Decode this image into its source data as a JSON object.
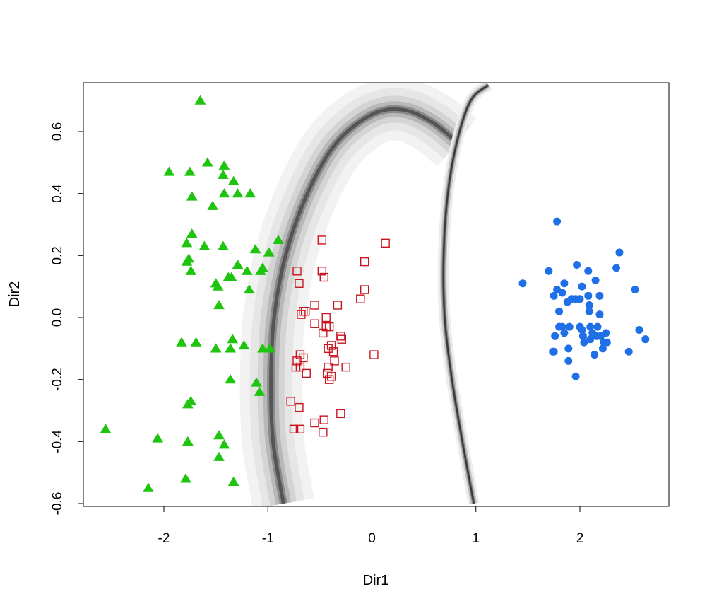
{
  "chart_data": {
    "type": "scatter",
    "xlabel": "Dir1",
    "ylabel": "Dir2",
    "xlim": [
      -2.72,
      2.92
    ],
    "ylim": [
      -0.607,
      0.75
    ],
    "x_ticks": [
      -2,
      -1,
      0,
      1,
      2
    ],
    "x_tick_labels": [
      "-2",
      "-1",
      "0",
      "1",
      "2"
    ],
    "y_ticks": [
      -0.6,
      -0.4,
      -0.2,
      0.0,
      0.2,
      0.4,
      0.6
    ],
    "y_tick_labels": [
      "-0.6",
      "-0.4",
      "-0.2",
      "0.0",
      "0.2",
      "0.4",
      "0.6"
    ],
    "grid": false,
    "legend": "none",
    "background": "grayscale density bands marking two decision boundaries",
    "boundaries": [
      {
        "points": [
          [
            -0.85,
            -0.6
          ],
          [
            -0.95,
            -0.4
          ],
          [
            -0.97,
            -0.2
          ],
          [
            -0.94,
            0.0
          ],
          [
            -0.83,
            0.2
          ],
          [
            -0.62,
            0.4
          ],
          [
            -0.35,
            0.56
          ],
          [
            0.0,
            0.655
          ],
          [
            0.3,
            0.67
          ],
          [
            0.58,
            0.63
          ],
          [
            0.82,
            0.565
          ]
        ]
      },
      {
        "points": [
          [
            0.98,
            -0.6
          ],
          [
            0.87,
            -0.4
          ],
          [
            0.77,
            -0.2
          ],
          [
            0.7,
            0.0
          ],
          [
            0.69,
            0.2
          ],
          [
            0.73,
            0.4
          ],
          [
            0.82,
            0.57
          ],
          [
            0.95,
            0.7
          ],
          [
            1.12,
            0.75
          ]
        ]
      }
    ],
    "series": [
      {
        "marker": "triangle",
        "color": "#1ec40d",
        "points": [
          [
            -1.65,
            0.7
          ],
          [
            -1.95,
            0.47
          ],
          [
            -1.75,
            0.47
          ],
          [
            -1.58,
            0.5
          ],
          [
            -1.42,
            0.49
          ],
          [
            -1.43,
            0.46
          ],
          [
            -1.33,
            0.44
          ],
          [
            -1.73,
            0.39
          ],
          [
            -1.42,
            0.4
          ],
          [
            -1.29,
            0.4
          ],
          [
            -1.17,
            0.4
          ],
          [
            -1.53,
            0.36
          ],
          [
            -1.73,
            0.27
          ],
          [
            -0.9,
            0.25
          ],
          [
            -1.78,
            0.24
          ],
          [
            -1.61,
            0.23
          ],
          [
            -1.43,
            0.23
          ],
          [
            -1.12,
            0.22
          ],
          [
            -0.99,
            0.21
          ],
          [
            -1.76,
            0.19
          ],
          [
            -1.78,
            0.18
          ],
          [
            -1.29,
            0.17
          ],
          [
            -1.05,
            0.16
          ],
          [
            -1.74,
            0.15
          ],
          [
            -1.2,
            0.15
          ],
          [
            -1.07,
            0.15
          ],
          [
            -1.38,
            0.13
          ],
          [
            -1.35,
            0.13
          ],
          [
            -1.5,
            0.11
          ],
          [
            -1.48,
            0.1
          ],
          [
            -1.18,
            0.09
          ],
          [
            -1.47,
            0.04
          ],
          [
            -1.34,
            -0.07
          ],
          [
            -1.83,
            -0.08
          ],
          [
            -1.69,
            -0.08
          ],
          [
            -1.23,
            -0.09
          ],
          [
            -1.5,
            -0.1
          ],
          [
            -1.36,
            -0.1
          ],
          [
            -1.05,
            -0.1
          ],
          [
            -0.98,
            -0.1
          ],
          [
            -1.36,
            -0.2
          ],
          [
            -1.11,
            -0.21
          ],
          [
            -1.08,
            -0.24
          ],
          [
            -1.74,
            -0.27
          ],
          [
            -1.77,
            -0.28
          ],
          [
            -2.56,
            -0.36
          ],
          [
            -1.47,
            -0.38
          ],
          [
            -2.06,
            -0.39
          ],
          [
            -1.77,
            -0.4
          ],
          [
            -1.42,
            -0.41
          ],
          [
            -1.47,
            -0.45
          ],
          [
            -1.79,
            -0.52
          ],
          [
            -1.33,
            -0.53
          ],
          [
            -2.15,
            -0.55
          ]
        ]
      },
      {
        "marker": "open-square",
        "color": "#c8141e",
        "points": [
          [
            0.13,
            0.24
          ],
          [
            -0.48,
            0.25
          ],
          [
            -0.07,
            0.18
          ],
          [
            -0.72,
            0.15
          ],
          [
            -0.48,
            0.15
          ],
          [
            -0.46,
            0.13
          ],
          [
            -0.7,
            0.11
          ],
          [
            -0.07,
            0.09
          ],
          [
            -0.11,
            0.06
          ],
          [
            -0.55,
            0.04
          ],
          [
            -0.33,
            0.04
          ],
          [
            -0.64,
            0.02
          ],
          [
            -0.66,
            0.02
          ],
          [
            -0.68,
            0.01
          ],
          [
            -0.44,
            0.0
          ],
          [
            -0.55,
            -0.02
          ],
          [
            -0.41,
            -0.03
          ],
          [
            -0.44,
            -0.03
          ],
          [
            -0.47,
            -0.05
          ],
          [
            -0.3,
            -0.06
          ],
          [
            -0.29,
            -0.07
          ],
          [
            -0.39,
            -0.09
          ],
          [
            -0.42,
            -0.1
          ],
          [
            -0.37,
            -0.11
          ],
          [
            0.02,
            -0.12
          ],
          [
            -0.69,
            -0.12
          ],
          [
            -0.66,
            -0.13
          ],
          [
            -0.36,
            -0.14
          ],
          [
            -0.72,
            -0.14
          ],
          [
            -0.73,
            -0.16
          ],
          [
            -0.69,
            -0.16
          ],
          [
            -0.42,
            -0.16
          ],
          [
            -0.25,
            -0.16
          ],
          [
            -0.43,
            -0.18
          ],
          [
            -0.63,
            -0.18
          ],
          [
            -0.39,
            -0.19
          ],
          [
            -0.41,
            -0.2
          ],
          [
            -0.78,
            -0.27
          ],
          [
            -0.7,
            -0.29
          ],
          [
            -0.3,
            -0.31
          ],
          [
            -0.46,
            -0.33
          ],
          [
            -0.55,
            -0.34
          ],
          [
            -0.75,
            -0.36
          ],
          [
            -0.69,
            -0.36
          ],
          [
            -0.47,
            -0.37
          ]
        ]
      },
      {
        "marker": "filled-circle",
        "color": "#1f6fe6",
        "points": [
          [
            1.78,
            0.31
          ],
          [
            2.38,
            0.21
          ],
          [
            1.97,
            0.17
          ],
          [
            2.35,
            0.16
          ],
          [
            1.7,
            0.15
          ],
          [
            2.08,
            0.15
          ],
          [
            2.15,
            0.12
          ],
          [
            1.45,
            0.11
          ],
          [
            1.85,
            0.11
          ],
          [
            2.02,
            0.1
          ],
          [
            1.78,
            0.09
          ],
          [
            1.83,
            0.08
          ],
          [
            2.53,
            0.09
          ],
          [
            1.75,
            0.07
          ],
          [
            1.96,
            0.06
          ],
          [
            2.0,
            0.06
          ],
          [
            2.08,
            0.07
          ],
          [
            2.19,
            0.07
          ],
          [
            1.92,
            0.06
          ],
          [
            1.88,
            0.05
          ],
          [
            2.09,
            0.04
          ],
          [
            1.8,
            0.02
          ],
          [
            2.09,
            0.02
          ],
          [
            2.19,
            0.01
          ],
          [
            1.8,
            -0.03
          ],
          [
            2.0,
            -0.03
          ],
          [
            1.9,
            -0.03
          ],
          [
            1.83,
            -0.03
          ],
          [
            2.1,
            -0.03
          ],
          [
            2.17,
            -0.03
          ],
          [
            2.02,
            -0.04
          ],
          [
            2.57,
            -0.04
          ],
          [
            1.85,
            -0.05
          ],
          [
            2.12,
            -0.05
          ],
          [
            2.16,
            -0.06
          ],
          [
            2.25,
            -0.05
          ],
          [
            1.76,
            -0.06
          ],
          [
            2.03,
            -0.06
          ],
          [
            2.2,
            -0.06
          ],
          [
            2.63,
            -0.07
          ],
          [
            2.1,
            -0.07
          ],
          [
            2.23,
            -0.08
          ],
          [
            2.26,
            -0.08
          ],
          [
            2.04,
            -0.08
          ],
          [
            2.22,
            -0.1
          ],
          [
            1.89,
            -0.1
          ],
          [
            2.47,
            -0.11
          ],
          [
            1.75,
            -0.11
          ],
          [
            1.74,
            -0.11
          ],
          [
            2.14,
            -0.12
          ],
          [
            1.89,
            -0.14
          ],
          [
            1.96,
            -0.19
          ]
        ]
      }
    ]
  }
}
